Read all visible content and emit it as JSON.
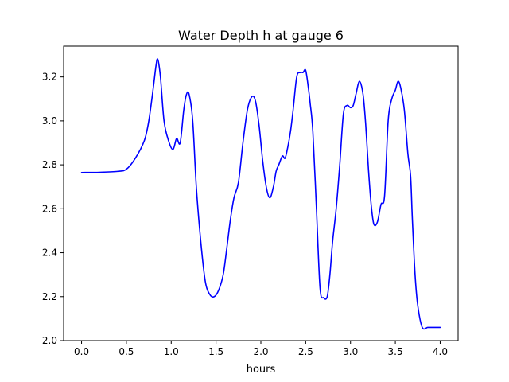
{
  "chart_data": {
    "type": "line",
    "title": "Water Depth h at gauge 6",
    "xlabel": "hours",
    "ylabel": "",
    "xlim": [
      -0.2,
      4.2
    ],
    "ylim": [
      2.0,
      3.34
    ],
    "xticks": [
      0.0,
      0.5,
      1.0,
      1.5,
      2.0,
      2.5,
      3.0,
      3.5,
      4.0
    ],
    "xtick_labels": [
      "0.0",
      "0.5",
      "1.0",
      "1.5",
      "2.0",
      "2.5",
      "3.0",
      "3.5",
      "4.0"
    ],
    "yticks": [
      2.0,
      2.2,
      2.4,
      2.6,
      2.8,
      3.0,
      3.2
    ],
    "ytick_labels": [
      "2.0",
      "2.2",
      "2.4",
      "2.6",
      "2.8",
      "3.0",
      "3.2"
    ],
    "grid": false,
    "legend": "none",
    "line_color": "#0000ff",
    "series": [
      {
        "x": [
          0.0,
          0.2,
          0.4,
          0.5,
          0.6,
          0.7,
          0.75,
          0.8,
          0.83,
          0.85,
          0.88,
          0.92,
          0.97,
          1.02,
          1.06,
          1.1,
          1.14,
          1.17,
          1.2,
          1.24,
          1.28,
          1.33,
          1.38,
          1.43,
          1.48,
          1.53,
          1.58,
          1.62,
          1.66,
          1.7,
          1.75,
          1.8,
          1.85,
          1.9,
          1.94,
          1.98,
          2.02,
          2.06,
          2.1,
          2.14,
          2.17,
          2.2,
          2.24,
          2.27,
          2.3,
          2.33,
          2.36,
          2.4,
          2.44,
          2.47,
          2.5,
          2.53,
          2.55,
          2.58,
          2.62,
          2.66,
          2.7,
          2.74,
          2.77,
          2.8,
          2.84,
          2.88,
          2.92,
          2.96,
          3.0,
          3.03,
          3.06,
          3.1,
          3.14,
          3.17,
          3.2,
          3.23,
          3.26,
          3.3,
          3.34,
          3.38,
          3.42,
          3.46,
          3.5,
          3.53,
          3.56,
          3.6,
          3.64,
          3.67,
          3.69,
          3.72,
          3.75,
          3.8,
          3.86,
          3.9,
          3.95,
          4.0
        ],
        "values": [
          2.765,
          2.766,
          2.77,
          2.78,
          2.83,
          2.91,
          3.0,
          3.15,
          3.25,
          3.28,
          3.2,
          3.0,
          2.91,
          2.87,
          2.92,
          2.9,
          3.05,
          3.12,
          3.12,
          3.0,
          2.7,
          2.45,
          2.27,
          2.21,
          2.2,
          2.23,
          2.3,
          2.42,
          2.55,
          2.65,
          2.72,
          2.9,
          3.05,
          3.11,
          3.09,
          2.98,
          2.82,
          2.7,
          2.65,
          2.7,
          2.77,
          2.8,
          2.84,
          2.83,
          2.88,
          2.95,
          3.05,
          3.2,
          3.22,
          3.22,
          3.23,
          3.15,
          3.08,
          2.95,
          2.6,
          2.24,
          2.195,
          2.2,
          2.3,
          2.45,
          2.6,
          2.8,
          3.03,
          3.07,
          3.06,
          3.07,
          3.12,
          3.18,
          3.12,
          2.98,
          2.78,
          2.62,
          2.53,
          2.54,
          2.62,
          2.66,
          3.0,
          3.1,
          3.14,
          3.18,
          3.15,
          3.05,
          2.85,
          2.75,
          2.55,
          2.3,
          2.16,
          2.06,
          2.06,
          2.06,
          2.06,
          2.06
        ]
      }
    ]
  }
}
